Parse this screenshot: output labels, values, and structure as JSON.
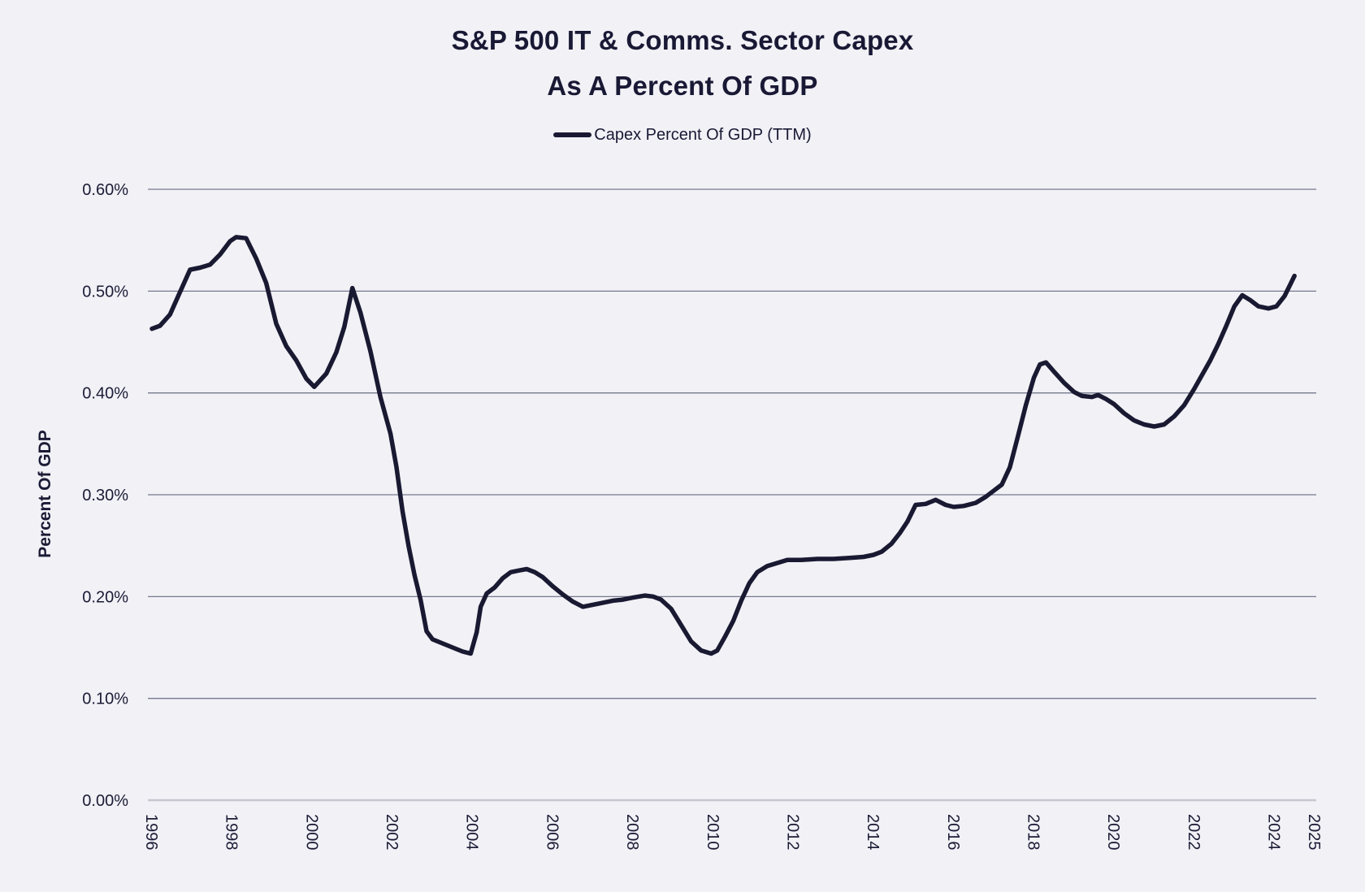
{
  "title": {
    "line1": "S&P 500 IT & Comms. Sector Capex",
    "line2": "As A Percent Of GDP"
  },
  "legend": {
    "label": "Capex Percent Of GDP (TTM)"
  },
  "colors": {
    "background": "#f1f1f6",
    "line": "#191932",
    "grid": "#757a8e",
    "zero_line": "#c6c7cf",
    "text": "#1b1b36"
  },
  "y_axis": {
    "title": "Percent Of GDP",
    "ticks": [
      {
        "label": "0.00%",
        "value": 0.0
      },
      {
        "label": "0.10%",
        "value": 0.1
      },
      {
        "label": "0.20%",
        "value": 0.2
      },
      {
        "label": "0.30%",
        "value": 0.3
      },
      {
        "label": "0.40%",
        "value": 0.4
      },
      {
        "label": "0.50%",
        "value": 0.5
      },
      {
        "label": "0.60%",
        "value": 0.6
      }
    ]
  },
  "x_axis": {
    "ticks": [
      {
        "label": "1996",
        "year": 1996
      },
      {
        "label": "1998",
        "year": 1998
      },
      {
        "label": "2000",
        "year": 2000
      },
      {
        "label": "2002",
        "year": 2002
      },
      {
        "label": "2004",
        "year": 2004
      },
      {
        "label": "2006",
        "year": 2006
      },
      {
        "label": "2008",
        "year": 2008
      },
      {
        "label": "2010",
        "year": 2010
      },
      {
        "label": "2012",
        "year": 2012
      },
      {
        "label": "2014",
        "year": 2014
      },
      {
        "label": "2016",
        "year": 2016
      },
      {
        "label": "2018",
        "year": 2018
      },
      {
        "label": "2020",
        "year": 2020
      },
      {
        "label": "2022",
        "year": 2022
      },
      {
        "label": "2024",
        "year": 2024
      },
      {
        "label": "2025",
        "year": 2025
      }
    ]
  },
  "chart_data": {
    "type": "line",
    "title": "S&P 500 IT & Comms. Sector Capex As A Percent Of GDP",
    "xlabel": "",
    "ylabel": "Percent Of GDP",
    "legend_position": "top-center",
    "grid": "horizontal",
    "x_range": [
      1995.9,
      2025.1
    ],
    "y_range_percent": [
      0.0,
      0.6
    ],
    "units": "percent of GDP, TTM",
    "series": [
      {
        "name": "Capex Percent Of GDP (TTM)",
        "points": [
          [
            1996.0,
            0.463
          ],
          [
            1996.2,
            0.466
          ],
          [
            1996.45,
            0.477
          ],
          [
            1996.7,
            0.499
          ],
          [
            1996.95,
            0.521
          ],
          [
            1997.2,
            0.523
          ],
          [
            1997.45,
            0.526
          ],
          [
            1997.7,
            0.536
          ],
          [
            1997.95,
            0.549
          ],
          [
            1998.1,
            0.553
          ],
          [
            1998.35,
            0.552
          ],
          [
            1998.6,
            0.532
          ],
          [
            1998.85,
            0.508
          ],
          [
            1999.1,
            0.468
          ],
          [
            1999.35,
            0.446
          ],
          [
            1999.6,
            0.432
          ],
          [
            1999.85,
            0.414
          ],
          [
            2000.05,
            0.406
          ],
          [
            2000.35,
            0.419
          ],
          [
            2000.6,
            0.44
          ],
          [
            2000.8,
            0.465
          ],
          [
            2001.0,
            0.503
          ],
          [
            2001.2,
            0.479
          ],
          [
            2001.45,
            0.441
          ],
          [
            2001.7,
            0.396
          ],
          [
            2001.95,
            0.36
          ],
          [
            2002.1,
            0.327
          ],
          [
            2002.25,
            0.284
          ],
          [
            2002.4,
            0.25
          ],
          [
            2002.55,
            0.221
          ],
          [
            2002.7,
            0.197
          ],
          [
            2002.85,
            0.166
          ],
          [
            2003.0,
            0.158
          ],
          [
            2003.25,
            0.154
          ],
          [
            2003.5,
            0.15
          ],
          [
            2003.75,
            0.146
          ],
          [
            2003.95,
            0.144
          ],
          [
            2004.1,
            0.165
          ],
          [
            2004.2,
            0.19
          ],
          [
            2004.35,
            0.203
          ],
          [
            2004.55,
            0.209
          ],
          [
            2004.75,
            0.218
          ],
          [
            2004.95,
            0.224
          ],
          [
            2005.2,
            0.226
          ],
          [
            2005.35,
            0.227
          ],
          [
            2005.55,
            0.224
          ],
          [
            2005.75,
            0.219
          ],
          [
            2006.0,
            0.21
          ],
          [
            2006.25,
            0.202
          ],
          [
            2006.5,
            0.195
          ],
          [
            2006.75,
            0.19
          ],
          [
            2007.0,
            0.192
          ],
          [
            2007.25,
            0.194
          ],
          [
            2007.5,
            0.196
          ],
          [
            2007.75,
            0.197
          ],
          [
            2008.0,
            0.199
          ],
          [
            2008.3,
            0.201
          ],
          [
            2008.5,
            0.2
          ],
          [
            2008.7,
            0.197
          ],
          [
            2008.95,
            0.188
          ],
          [
            2009.2,
            0.172
          ],
          [
            2009.45,
            0.156
          ],
          [
            2009.7,
            0.147
          ],
          [
            2009.95,
            0.144
          ],
          [
            2010.1,
            0.147
          ],
          [
            2010.3,
            0.161
          ],
          [
            2010.5,
            0.176
          ],
          [
            2010.7,
            0.196
          ],
          [
            2010.9,
            0.213
          ],
          [
            2011.1,
            0.224
          ],
          [
            2011.35,
            0.23
          ],
          [
            2011.6,
            0.233
          ],
          [
            2011.85,
            0.236
          ],
          [
            2012.2,
            0.236
          ],
          [
            2012.6,
            0.237
          ],
          [
            2013.0,
            0.237
          ],
          [
            2013.4,
            0.238
          ],
          [
            2013.75,
            0.239
          ],
          [
            2014.0,
            0.241
          ],
          [
            2014.2,
            0.244
          ],
          [
            2014.45,
            0.252
          ],
          [
            2014.65,
            0.262
          ],
          [
            2014.85,
            0.274
          ],
          [
            2015.05,
            0.29
          ],
          [
            2015.3,
            0.291
          ],
          [
            2015.55,
            0.295
          ],
          [
            2015.8,
            0.29
          ],
          [
            2016.0,
            0.288
          ],
          [
            2016.25,
            0.289
          ],
          [
            2016.55,
            0.292
          ],
          [
            2016.8,
            0.298
          ],
          [
            2017.0,
            0.304
          ],
          [
            2017.2,
            0.31
          ],
          [
            2017.4,
            0.327
          ],
          [
            2017.6,
            0.357
          ],
          [
            2017.8,
            0.388
          ],
          [
            2018.0,
            0.415
          ],
          [
            2018.15,
            0.428
          ],
          [
            2018.3,
            0.43
          ],
          [
            2018.5,
            0.421
          ],
          [
            2018.75,
            0.41
          ],
          [
            2019.0,
            0.401
          ],
          [
            2019.2,
            0.397
          ],
          [
            2019.45,
            0.396
          ],
          [
            2019.6,
            0.398
          ],
          [
            2019.8,
            0.394
          ],
          [
            2020.0,
            0.389
          ],
          [
            2020.25,
            0.38
          ],
          [
            2020.5,
            0.373
          ],
          [
            2020.75,
            0.369
          ],
          [
            2021.0,
            0.367
          ],
          [
            2021.25,
            0.369
          ],
          [
            2021.5,
            0.377
          ],
          [
            2021.75,
            0.388
          ],
          [
            2022.0,
            0.404
          ],
          [
            2022.2,
            0.418
          ],
          [
            2022.4,
            0.432
          ],
          [
            2022.6,
            0.448
          ],
          [
            2022.8,
            0.466
          ],
          [
            2023.0,
            0.485
          ],
          [
            2023.2,
            0.496
          ],
          [
            2023.4,
            0.491
          ],
          [
            2023.6,
            0.485
          ],
          [
            2023.85,
            0.483
          ],
          [
            2024.05,
            0.485
          ],
          [
            2024.25,
            0.495
          ],
          [
            2024.4,
            0.507
          ],
          [
            2024.5,
            0.515
          ]
        ]
      }
    ]
  }
}
